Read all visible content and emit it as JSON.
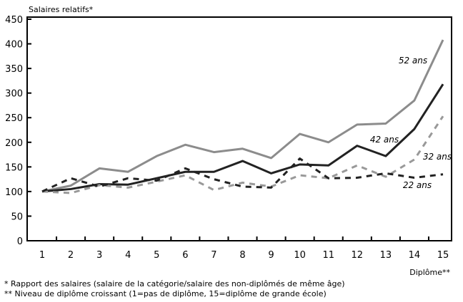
{
  "chart_data": {
    "type": "line",
    "ylabel": "Salaires relatifs*",
    "xlabel": "Diplôme**",
    "ylim": [
      0,
      450
    ],
    "yticks": [
      0,
      50,
      100,
      150,
      200,
      250,
      300,
      350,
      400,
      450
    ],
    "x": [
      1,
      2,
      3,
      4,
      5,
      6,
      7,
      8,
      9,
      10,
      11,
      12,
      13,
      14,
      15
    ],
    "grid": false,
    "series": [
      {
        "name": "52 ans",
        "color": "#8c8c8c",
        "style": "solid",
        "values": [
          100,
          112,
          147,
          140,
          172,
          195,
          180,
          187,
          168,
          217,
          200,
          236,
          238,
          285,
          408
        ]
      },
      {
        "name": "42 ans",
        "color": "#222222",
        "style": "solid",
        "values": [
          100,
          105,
          115,
          114,
          127,
          140,
          140,
          162,
          137,
          155,
          153,
          193,
          172,
          227,
          318
        ]
      },
      {
        "name": "32 ans",
        "color": "#999999",
        "style": "dashed",
        "values": [
          100,
          97,
          113,
          108,
          120,
          133,
          103,
          118,
          110,
          133,
          127,
          153,
          130,
          165,
          253
        ]
      },
      {
        "name": "22 ans",
        "color": "#222222",
        "style": "dashed",
        "values": [
          100,
          127,
          110,
          127,
          122,
          147,
          125,
          110,
          108,
          167,
          127,
          128,
          137,
          128,
          135
        ]
      }
    ]
  },
  "footnotes": [
    "* Rapport des salaires (salaire de la catégorie/salaire des non-diplômés de même âge)",
    "** Niveau de diplôme croissant  (1=pas de diplôme, 15=diplôme de grande école)"
  ]
}
